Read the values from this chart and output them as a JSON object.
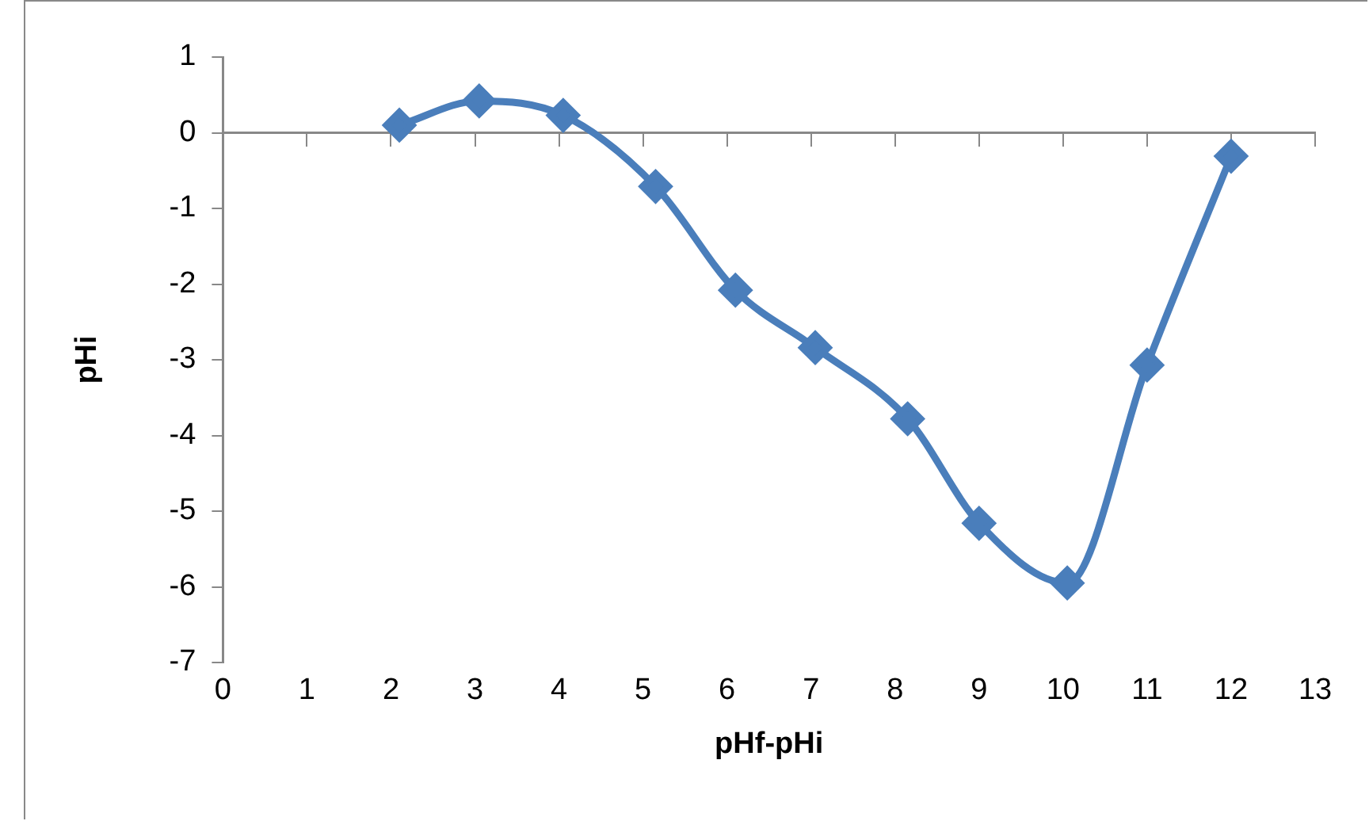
{
  "chart_data": {
    "type": "scatter",
    "xlabel": "pHf-pHi",
    "ylabel": "pHi",
    "xlim": [
      0,
      13
    ],
    "xticks": [
      0,
      1,
      2,
      3,
      4,
      5,
      6,
      7,
      8,
      9,
      10,
      11,
      12,
      13
    ],
    "ylim": [
      -7,
      1
    ],
    "yticks": [
      -7,
      -6,
      -5,
      -4,
      -3,
      -2,
      -1,
      0,
      1
    ],
    "legend": false,
    "marker": "diamond",
    "line_style": "solid",
    "series": [
      {
        "type": "line",
        "color": "#4a7ebb",
        "x": [
          2.1,
          3.05,
          4.05,
          5.15,
          6.1,
          7.05,
          8.15,
          9,
          10.05,
          11,
          12
        ],
        "values": [
          0.1,
          0.42,
          0.23,
          -0.71,
          -2.08,
          -2.84,
          -3.78,
          -5.16,
          -5.95,
          -3.07,
          -0.31
        ]
      }
    ]
  }
}
